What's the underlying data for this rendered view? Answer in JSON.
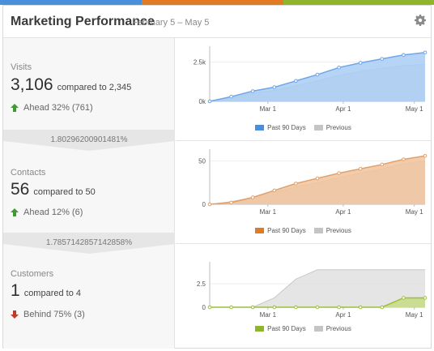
{
  "header": {
    "title": "Marketing Performance",
    "date_range": "February 5 – May 5",
    "settings_icon": "gear-icon"
  },
  "colors": {
    "topbar": [
      "#4a8fdb",
      "#e07a25",
      "#8fb52a"
    ],
    "visits": "#6ea6e8",
    "visits_fill": "#a9cdf5",
    "contacts": "#e3a06a",
    "contacts_fill": "#f1c49c",
    "customers": "#9cbf3a",
    "customers_fill": "#c6dc84",
    "previous": "#cfcfcf",
    "up_arrow": "#3f9a2f",
    "down_arrow": "#c0392b"
  },
  "metrics": [
    {
      "label": "Visits",
      "value": "3,106",
      "compare": "compared to 2,345",
      "trend_icon": "up-arrow-icon",
      "trend": "Ahead 32% (761)"
    },
    {
      "label": "Contacts",
      "value": "56",
      "compare": "compared to 50",
      "trend_icon": "up-arrow-icon",
      "trend": "Ahead 12% (6)"
    },
    {
      "label": "Customers",
      "value": "1",
      "compare": "compared to 4",
      "trend_icon": "down-arrow-icon",
      "trend": "Behind 75% (3)"
    }
  ],
  "conversions": [
    "1.80296200901481%",
    "1.7857142857142858%"
  ],
  "legend": {
    "current": "Past 90 Days",
    "previous": "Previous"
  },
  "chart_data": [
    {
      "type": "area",
      "x": [
        "Feb 5",
        "Feb 15",
        "Feb 25",
        "Mar 1",
        "Mar 10",
        "Mar 20",
        "Apr 1",
        "Apr 10",
        "Apr 20",
        "May 1",
        "May 5"
      ],
      "x_ticks": [
        "Mar 1",
        "Apr 1",
        "May 1"
      ],
      "y_ticks": [
        "0k",
        "2.5k"
      ],
      "ylim": [
        0,
        3300
      ],
      "series": [
        {
          "name": "Past 90 Days",
          "values": [
            0,
            300,
            650,
            900,
            1300,
            1700,
            2150,
            2450,
            2700,
            2950,
            3106
          ]
        },
        {
          "name": "Previous",
          "values": [
            0,
            230,
            500,
            700,
            1000,
            1300,
            1650,
            1900,
            2100,
            2280,
            2345
          ]
        }
      ]
    },
    {
      "type": "area",
      "x": [
        "Feb 5",
        "Feb 15",
        "Feb 25",
        "Mar 1",
        "Mar 10",
        "Mar 20",
        "Apr 1",
        "Apr 10",
        "Apr 20",
        "May 1",
        "May 5"
      ],
      "x_ticks": [
        "Mar 1",
        "Apr 1",
        "May 1"
      ],
      "y_ticks": [
        "0",
        "50"
      ],
      "ylim": [
        0,
        60
      ],
      "series": [
        {
          "name": "Past 90 Days",
          "values": [
            0,
            2,
            8,
            16,
            24,
            30,
            36,
            41,
            46,
            52,
            56
          ]
        },
        {
          "name": "Previous",
          "values": [
            0,
            3,
            8,
            14,
            20,
            25,
            31,
            36,
            41,
            47,
            50
          ]
        }
      ]
    },
    {
      "type": "area",
      "x": [
        "Feb 5",
        "Feb 15",
        "Feb 25",
        "Mar 1",
        "Mar 5",
        "Mar 10",
        "Apr 1",
        "Apr 10",
        "Apr 20",
        "May 1",
        "May 5"
      ],
      "x_ticks": [
        "Mar 1",
        "Apr 1",
        "May 1"
      ],
      "y_ticks": [
        "0",
        "2.5"
      ],
      "ylim": [
        0,
        4.5
      ],
      "series": [
        {
          "name": "Past 90 Days",
          "values": [
            0,
            0,
            0,
            0,
            0,
            0,
            0,
            0,
            0,
            1,
            1
          ]
        },
        {
          "name": "Previous",
          "values": [
            0,
            0,
            0,
            1,
            3,
            4,
            4,
            4,
            4,
            4,
            4
          ]
        }
      ]
    }
  ]
}
